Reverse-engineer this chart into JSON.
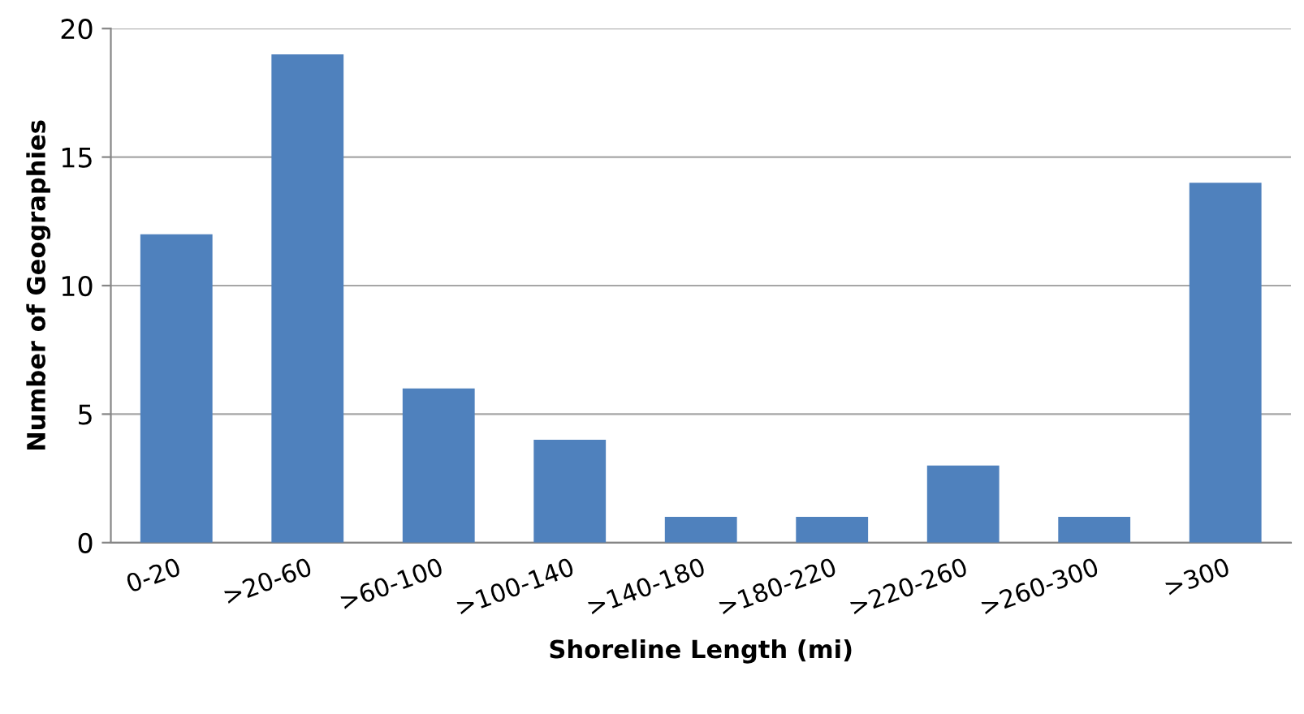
{
  "chart_data": {
    "type": "bar",
    "xlabel": "Shoreline Length (mi)",
    "ylabel": "Number of Geographies",
    "categories": [
      "0-20",
      ">20-60",
      ">60-100",
      ">100-140",
      ">140-180",
      ">180-220",
      ">220-260",
      ">260-300",
      ">300"
    ],
    "values": [
      12,
      19,
      6,
      4,
      1,
      1,
      3,
      1,
      14
    ],
    "color": "#4f81bd",
    "ylim": [
      0,
      20
    ],
    "yticks": [
      0,
      5,
      10,
      15,
      20
    ],
    "grid": "y",
    "legend": false
  }
}
